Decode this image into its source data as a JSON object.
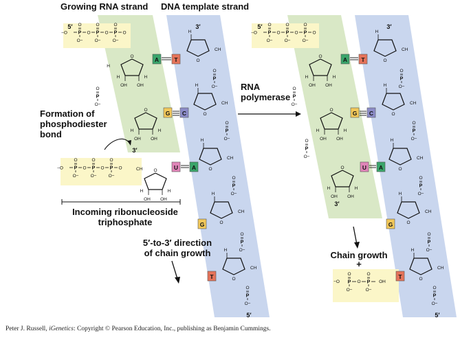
{
  "labels": {
    "growing_rna": "Growing RNA strand",
    "dna_template": "DNA template strand",
    "formation_line1": "Formation of",
    "formation_line2": "phosphodiester",
    "formation_line3": "bond",
    "incoming_line1": "Incoming ribonucleoside",
    "incoming_line2": "triphosphate",
    "direction_line1": "5′-to-3′ direction",
    "direction_line2": "of chain growth",
    "polymerase_line1": "RNA",
    "polymerase_line2": "polymerase",
    "chain_growth": "Chain growth",
    "plus": "+"
  },
  "primes": {
    "five": "5′",
    "three": "3′"
  },
  "molecule": {
    "phosphorus": "P",
    "oxygen": "O",
    "oxyanion": "−O",
    "oxyanion_right": "O−",
    "hydroxyl": "OH",
    "hydrogen": "H",
    "methylene": "CH",
    "methylene_sub": "2",
    "methylene_left": "H",
    "methylene_left_tail": "C"
  },
  "bases": {
    "left_rna": [
      "A",
      "G"
    ],
    "left_dna": [
      "T",
      "C",
      "A"
    ],
    "incoming": "U",
    "unpaired_dna": [
      "G",
      "T"
    ],
    "right_rna": [
      "A",
      "G",
      "U"
    ],
    "right_dna": [
      "T",
      "C",
      "A"
    ],
    "right_unpaired_dna": [
      "G",
      "T"
    ]
  },
  "colors": {
    "rna_band": "#d9e8c6",
    "dna_band": "#c9d6ee",
    "phosphate_box": "#fbf6c8",
    "A": "#3aa56b",
    "T": "#e5735a",
    "G": "#f2c85a",
    "C": "#8c8cc8",
    "U": "#e085b8"
  },
  "credit": {
    "prefix": "Peter J. Russell, ",
    "title": "iGenetics",
    "suffix": ": Copyright © Pearson Education, Inc., publishing as Benjamin Cummings."
  }
}
